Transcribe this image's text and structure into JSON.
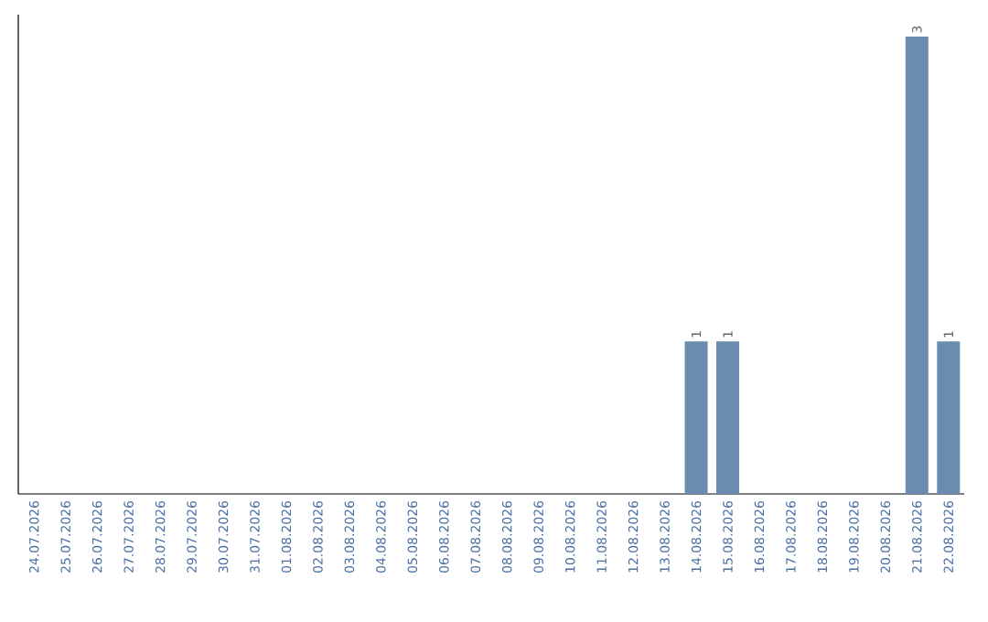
{
  "chart_data": {
    "type": "bar",
    "categories": [
      "24.07.2026",
      "25.07.2026",
      "26.07.2026",
      "27.07.2026",
      "28.07.2026",
      "29.07.2026",
      "30.07.2026",
      "31.07.2026",
      "01.08.2026",
      "02.08.2026",
      "03.08.2026",
      "04.08.2026",
      "05.08.2026",
      "06.08.2026",
      "07.08.2026",
      "08.08.2026",
      "09.08.2026",
      "10.08.2026",
      "11.08.2026",
      "12.08.2026",
      "13.08.2026",
      "14.08.2026",
      "15.08.2026",
      "16.08.2026",
      "17.08.2026",
      "18.08.2026",
      "19.08.2026",
      "20.08.2026",
      "21.08.2026",
      "22.08.2026"
    ],
    "values": [
      null,
      null,
      null,
      null,
      null,
      null,
      null,
      null,
      null,
      null,
      null,
      null,
      null,
      null,
      null,
      null,
      null,
      null,
      null,
      null,
      null,
      1,
      1,
      null,
      null,
      null,
      null,
      null,
      3,
      1
    ],
    "data_labels": true,
    "color": "#6a8caf",
    "tick_labels": "x"
  }
}
